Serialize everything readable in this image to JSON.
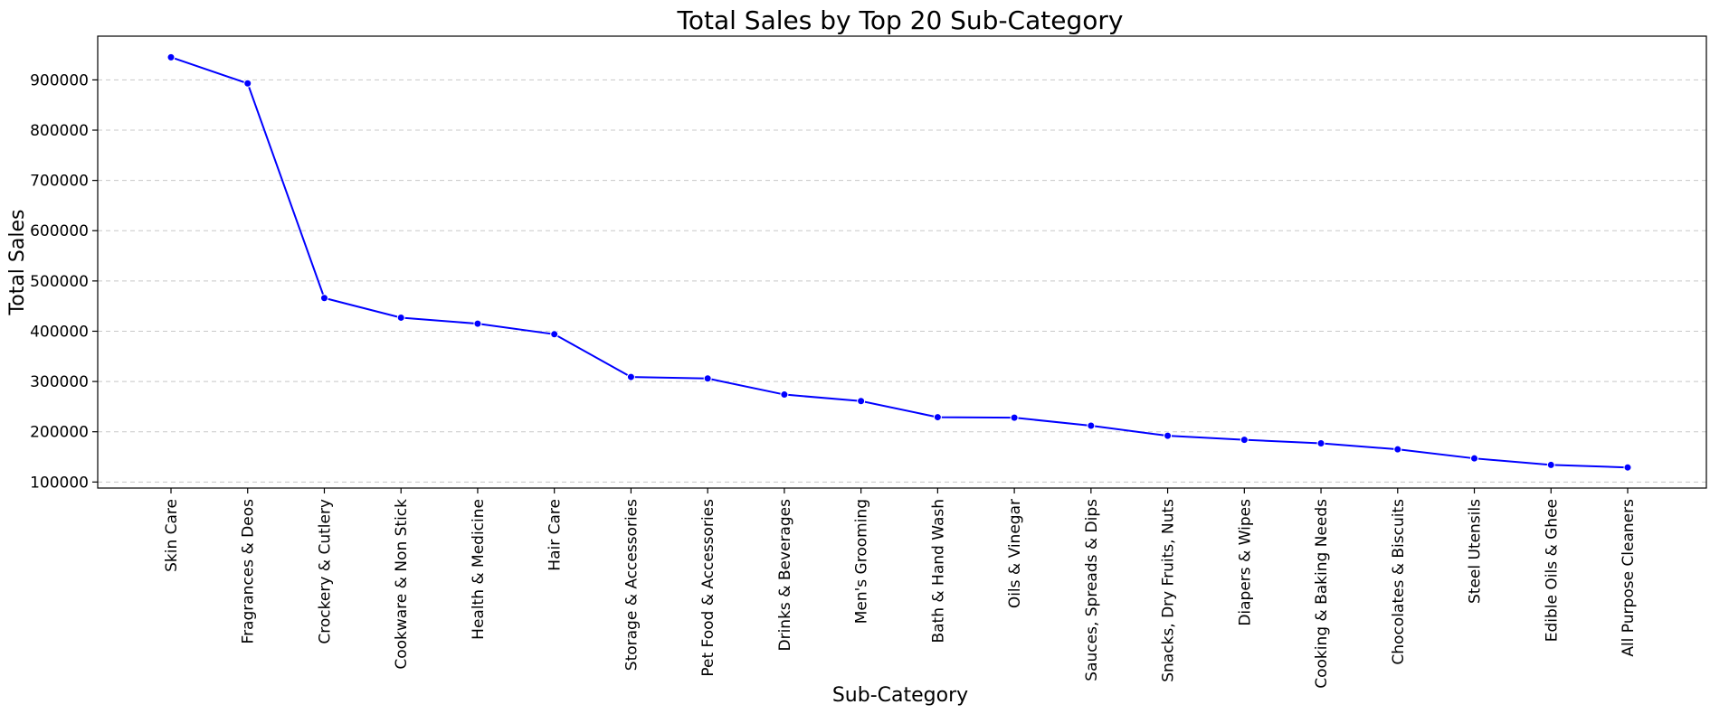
{
  "chart_data": {
    "type": "line",
    "title": "Total Sales by Top 20 Sub-Category",
    "xlabel": "Sub-Category",
    "ylabel": "Total Sales",
    "categories": [
      "Skin Care",
      "Fragrances & Deos",
      "Crockery & Cutlery",
      "Cookware & Non Stick",
      "Health & Medicine",
      "Hair Care",
      "Storage & Accessories",
      "Pet Food & Accessories",
      "Drinks & Beverages",
      "Men's Grooming",
      "Bath & Hand Wash",
      "Oils & Vinegar",
      "Sauces, Spreads & Dips",
      "Snacks, Dry Fruits, Nuts",
      "Diapers & Wipes",
      "Cooking & Baking Needs",
      "Chocolates & Biscuits",
      "Steel Utensils",
      "Edible Oils & Ghee",
      "All Purpose Cleaners"
    ],
    "values": [
      945000,
      893000,
      466000,
      427000,
      415000,
      394000,
      309000,
      306000,
      274000,
      261000,
      229000,
      228000,
      212000,
      192000,
      184000,
      177000,
      165000,
      147000,
      134000,
      129000
    ],
    "yticks": [
      100000,
      200000,
      300000,
      400000,
      500000,
      600000,
      700000,
      800000,
      900000
    ],
    "ylim": [
      88000,
      987000
    ],
    "grid": "horizontal-dashed",
    "line_color": "#0000ff",
    "marker_color": "#0000ff"
  }
}
